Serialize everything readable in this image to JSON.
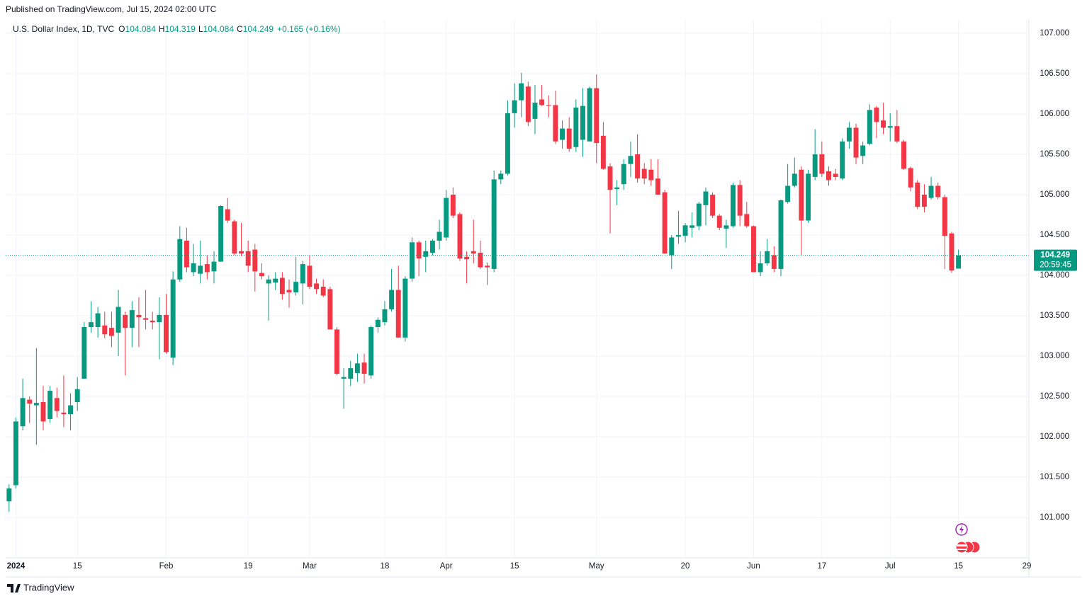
{
  "published": "Published on TradingView.com, Jul 15, 2024 02:00 UTC",
  "footer": "TradingView",
  "chart_data": {
    "type": "candlestick",
    "title": "U.S. Dollar Index, 1D, TVC",
    "ohlc_labels": [
      "O",
      "H",
      "L",
      "C"
    ],
    "change": "+0.165 (+0.16%)",
    "countdown": "20:59:45",
    "up_color": "#089981",
    "down_color": "#f23645",
    "grid": true,
    "xlim": [
      -0.5,
      149
    ],
    "ylim": [
      100.509,
      107.167
    ],
    "yticks": [
      {
        "value": 101,
        "label": "101.000"
      },
      {
        "value": 101.5,
        "label": "101.500"
      },
      {
        "value": 102,
        "label": "102.000"
      },
      {
        "value": 102.5,
        "label": "102.500"
      },
      {
        "value": 103,
        "label": "103.000"
      },
      {
        "value": 103.5,
        "label": "103.500"
      },
      {
        "value": 104,
        "label": "104.000"
      },
      {
        "value": 104.5,
        "label": "104.500"
      },
      {
        "value": 105,
        "label": "105.000"
      },
      {
        "value": 105.5,
        "label": "105.500"
      },
      {
        "value": 106,
        "label": "106.000"
      },
      {
        "value": 106.5,
        "label": "106.500"
      },
      {
        "value": 107,
        "label": "107.000"
      }
    ],
    "xticks": [
      {
        "value": 1,
        "label": "2024"
      },
      {
        "value": 10,
        "label": "15"
      },
      {
        "value": 23,
        "label": "Feb"
      },
      {
        "value": 35,
        "label": "19"
      },
      {
        "value": 44,
        "label": "Mar"
      },
      {
        "value": 55,
        "label": "18"
      },
      {
        "value": 64,
        "label": "Apr"
      },
      {
        "value": 74,
        "label": "15"
      },
      {
        "value": 86,
        "label": "May"
      },
      {
        "value": 99,
        "label": "20"
      },
      {
        "value": 109,
        "label": "Jun"
      },
      {
        "value": 119,
        "label": "17"
      },
      {
        "value": 129,
        "label": "Jul"
      },
      {
        "value": 139,
        "label": "15"
      },
      {
        "value": 149,
        "label": "29"
      }
    ],
    "ohlc": [
      [
        101.2,
        101.41,
        101.07,
        101.36
      ],
      [
        101.4,
        102.24,
        101.36,
        102.19
      ],
      [
        102.13,
        102.72,
        102.08,
        102.48
      ],
      [
        102.46,
        102.5,
        102.17,
        102.41
      ],
      [
        102.39,
        103.1,
        101.9,
        102.42
      ],
      [
        102.43,
        102.63,
        102.08,
        102.19
      ],
      [
        102.22,
        102.63,
        102.17,
        102.57
      ],
      [
        102.48,
        102.61,
        102.24,
        102.32
      ],
      [
        102.3,
        102.76,
        102.12,
        102.28
      ],
      [
        102.28,
        102.54,
        102.08,
        102.39
      ],
      [
        102.43,
        102.74,
        102.32,
        102.59
      ],
      [
        102.72,
        103.42,
        102.72,
        103.36
      ],
      [
        103.36,
        103.68,
        103.29,
        103.42
      ],
      [
        103.36,
        103.61,
        103.23,
        103.53
      ],
      [
        103.38,
        103.55,
        103.22,
        103.27
      ],
      [
        103.35,
        103.55,
        103.11,
        103.25
      ],
      [
        103.29,
        103.82,
        103.0,
        103.61
      ],
      [
        103.51,
        103.55,
        102.76,
        103.35
      ],
      [
        103.35,
        103.68,
        103.11,
        103.57
      ],
      [
        103.51,
        103.73,
        103.11,
        103.48
      ],
      [
        103.47,
        103.82,
        103.33,
        103.45
      ],
      [
        103.44,
        103.55,
        103.33,
        103.42
      ],
      [
        103.42,
        103.73,
        102.96,
        103.51
      ],
      [
        103.51,
        103.77,
        103.03,
        103.05
      ],
      [
        102.98,
        104.05,
        102.89,
        103.95
      ],
      [
        103.95,
        104.61,
        103.92,
        104.45
      ],
      [
        104.43,
        104.59,
        104.04,
        104.1
      ],
      [
        104.04,
        104.39,
        103.99,
        104.15
      ],
      [
        104.02,
        104.43,
        103.9,
        104.12
      ],
      [
        104.14,
        104.25,
        103.95,
        104.04
      ],
      [
        104.05,
        104.3,
        103.9,
        104.17
      ],
      [
        104.17,
        104.87,
        104.17,
        104.86
      ],
      [
        104.82,
        104.96,
        104.65,
        104.68
      ],
      [
        104.67,
        104.69,
        104.25,
        104.27
      ],
      [
        104.3,
        104.65,
        104.24,
        104.27
      ],
      [
        104.3,
        104.43,
        104.04,
        104.12
      ],
      [
        104.32,
        104.39,
        103.8,
        104.05
      ],
      [
        104.03,
        104.15,
        103.95,
        103.99
      ],
      [
        103.9,
        104.0,
        103.44,
        103.95
      ],
      [
        103.91,
        104.04,
        103.82,
        103.96
      ],
      [
        103.97,
        104.04,
        103.7,
        103.77
      ],
      [
        103.82,
        103.95,
        103.6,
        103.79
      ],
      [
        103.79,
        104.23,
        103.75,
        103.92
      ],
      [
        103.9,
        104.18,
        103.64,
        104.14
      ],
      [
        104.12,
        104.25,
        103.83,
        103.86
      ],
      [
        103.9,
        103.96,
        103.77,
        103.83
      ],
      [
        103.86,
        103.95,
        103.73,
        103.75
      ],
      [
        103.83,
        103.86,
        103.33,
        103.33
      ],
      [
        103.33,
        103.36,
        102.76,
        102.78
      ],
      [
        102.72,
        102.85,
        102.35,
        102.74
      ],
      [
        102.72,
        102.94,
        102.63,
        102.85
      ],
      [
        102.79,
        103.03,
        102.68,
        102.91
      ],
      [
        102.92,
        103.03,
        102.66,
        102.78
      ],
      [
        102.76,
        103.38,
        102.72,
        103.36
      ],
      [
        103.36,
        103.48,
        103.29,
        103.45
      ],
      [
        103.42,
        103.68,
        103.38,
        103.58
      ],
      [
        103.58,
        104.08,
        103.55,
        103.82
      ],
      [
        103.82,
        104.12,
        103.23,
        103.23
      ],
      [
        103.23,
        103.99,
        103.18,
        103.96
      ],
      [
        103.96,
        104.47,
        103.92,
        104.41
      ],
      [
        104.41,
        104.43,
        103.99,
        104.21
      ],
      [
        104.23,
        104.43,
        104.04,
        104.3
      ],
      [
        104.28,
        104.45,
        104.25,
        104.43
      ],
      [
        104.43,
        104.69,
        104.32,
        104.54
      ],
      [
        104.47,
        105.06,
        104.43,
        104.96
      ],
      [
        105.0,
        105.09,
        104.71,
        104.74
      ],
      [
        104.76,
        104.78,
        104.18,
        104.21
      ],
      [
        104.23,
        104.3,
        103.9,
        104.2
      ],
      [
        104.3,
        104.69,
        104.15,
        104.27
      ],
      [
        104.28,
        104.43,
        104.08,
        104.1
      ],
      [
        104.12,
        104.16,
        103.88,
        104.1
      ],
      [
        104.08,
        105.3,
        104.04,
        105.19
      ],
      [
        105.19,
        105.3,
        105.13,
        105.26
      ],
      [
        105.26,
        106.17,
        105.24,
        106.01
      ],
      [
        106.01,
        106.38,
        105.83,
        106.17
      ],
      [
        106.17,
        106.51,
        105.96,
        106.38
      ],
      [
        106.34,
        106.4,
        105.85,
        105.9
      ],
      [
        105.94,
        106.36,
        105.75,
        106.14
      ],
      [
        106.18,
        106.36,
        106.1,
        106.11
      ],
      [
        106.11,
        106.23,
        105.96,
        106.1
      ],
      [
        106.11,
        106.29,
        105.63,
        105.66
      ],
      [
        105.68,
        105.92,
        105.57,
        105.82
      ],
      [
        105.82,
        105.96,
        105.53,
        105.57
      ],
      [
        105.59,
        106.18,
        105.53,
        106.08
      ],
      [
        105.68,
        106.32,
        105.47,
        106.1
      ],
      [
        105.66,
        106.34,
        105.66,
        106.32
      ],
      [
        106.32,
        106.49,
        105.39,
        105.64
      ],
      [
        105.73,
        105.9,
        105.31,
        105.32
      ],
      [
        105.35,
        105.39,
        104.52,
        105.06
      ],
      [
        105.07,
        105.18,
        104.87,
        105.09
      ],
      [
        105.13,
        105.44,
        105.06,
        105.38
      ],
      [
        105.38,
        105.66,
        105.22,
        105.48
      ],
      [
        105.5,
        105.75,
        105.15,
        105.2
      ],
      [
        105.32,
        105.39,
        105.13,
        105.2
      ],
      [
        105.31,
        105.44,
        105.11,
        105.18
      ],
      [
        105.2,
        105.44,
        105.0,
        105.0
      ],
      [
        105.03,
        105.06,
        104.27,
        104.27
      ],
      [
        104.25,
        104.5,
        104.08,
        104.47
      ],
      [
        104.48,
        104.8,
        104.39,
        104.5
      ],
      [
        104.49,
        104.65,
        104.41,
        104.62
      ],
      [
        104.59,
        104.78,
        104.47,
        104.62
      ],
      [
        104.61,
        104.91,
        104.56,
        104.89
      ],
      [
        104.87,
        105.09,
        104.62,
        105.04
      ],
      [
        105.0,
        105.03,
        104.71,
        104.74
      ],
      [
        104.74,
        104.76,
        104.56,
        104.59
      ],
      [
        104.58,
        104.69,
        104.34,
        104.62
      ],
      [
        104.61,
        105.15,
        104.59,
        105.12
      ],
      [
        105.12,
        105.18,
        104.61,
        104.74
      ],
      [
        104.76,
        104.91,
        104.59,
        104.61
      ],
      [
        104.61,
        104.62,
        104.04,
        104.04
      ],
      [
        104.04,
        104.3,
        103.99,
        104.15
      ],
      [
        104.15,
        104.45,
        104.12,
        104.3
      ],
      [
        104.25,
        104.36,
        104.04,
        104.08
      ],
      [
        104.08,
        104.94,
        103.99,
        104.93
      ],
      [
        104.91,
        105.38,
        104.89,
        105.11
      ],
      [
        105.11,
        105.46,
        105.09,
        105.26
      ],
      [
        105.31,
        105.35,
        104.25,
        104.68
      ],
      [
        104.68,
        105.31,
        104.65,
        105.26
      ],
      [
        105.22,
        105.81,
        105.18,
        105.5
      ],
      [
        105.5,
        105.66,
        105.22,
        105.26
      ],
      [
        105.29,
        105.35,
        105.11,
        105.18
      ],
      [
        105.26,
        105.32,
        105.18,
        105.22
      ],
      [
        105.2,
        105.7,
        105.18,
        105.66
      ],
      [
        105.66,
        105.9,
        105.57,
        105.83
      ],
      [
        105.83,
        105.88,
        105.38,
        105.46
      ],
      [
        105.48,
        105.66,
        105.38,
        105.61
      ],
      [
        105.63,
        106.12,
        105.61,
        106.05
      ],
      [
        106.08,
        106.1,
        105.7,
        105.9
      ],
      [
        105.92,
        106.14,
        105.75,
        105.83
      ],
      [
        105.83,
        106.01,
        105.66,
        105.85
      ],
      [
        105.85,
        106.05,
        105.64,
        105.66
      ],
      [
        105.66,
        105.68,
        105.31,
        105.32
      ],
      [
        105.33,
        105.35,
        105.04,
        105.09
      ],
      [
        105.15,
        105.18,
        104.82,
        104.85
      ],
      [
        105.0,
        105.13,
        104.78,
        104.85
      ],
      [
        104.96,
        105.22,
        104.94,
        105.11
      ],
      [
        105.11,
        105.15,
        104.94,
        104.97
      ],
      [
        104.97,
        105.0,
        104.08,
        104.49
      ],
      [
        104.52,
        104.54,
        104.03,
        104.06
      ],
      [
        104.084,
        104.319,
        104.084,
        104.249
      ]
    ]
  }
}
